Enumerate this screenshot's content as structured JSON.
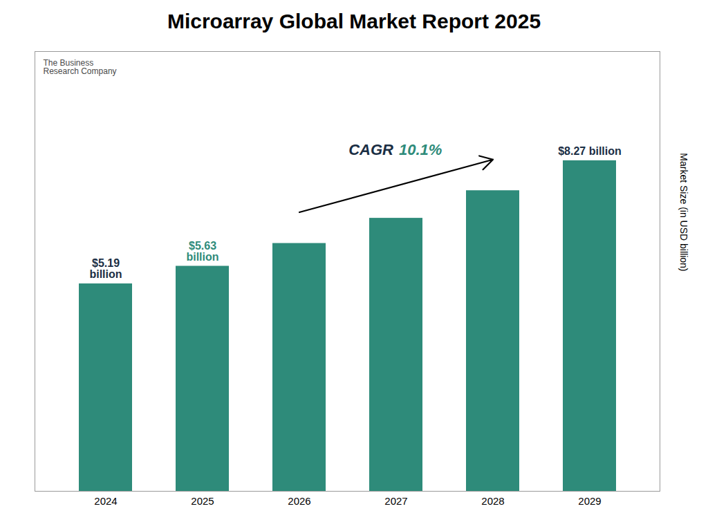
{
  "chart_data": {
    "type": "bar",
    "title": "Microarray Global Market Report 2025",
    "categories": [
      "2024",
      "2025",
      "2026",
      "2027",
      "2028",
      "2029"
    ],
    "values": [
      5.19,
      5.63,
      6.2,
      6.83,
      7.52,
      8.27
    ],
    "color": "#2e8b7a",
    "ylim": [
      0,
      11.0
    ],
    "yticks": [],
    "y_label": "Market Size (in USD billion)",
    "tick_labels": "x",
    "grid": false,
    "annotations": [
      {
        "text": "$5.19\nbillion",
        "x": "2024",
        "y": 5.19,
        "color": "#1a2e44"
      },
      {
        "text": "$5.63\nbillion",
        "x": "2025",
        "y": 5.63,
        "color": "#2e8b7a"
      },
      {
        "text": "$8.27 billion",
        "x": "2029",
        "y": 8.27,
        "color": "#1a2e44"
      },
      {
        "text": "The Business\nResearch Company",
        "color": "#4a4a4a"
      }
    ],
    "cagr": [
      {
        "text": "CAGR",
        "color": "#1a2e44"
      },
      {
        "text": "10.1%",
        "color": "#2e8b7a"
      }
    ]
  }
}
